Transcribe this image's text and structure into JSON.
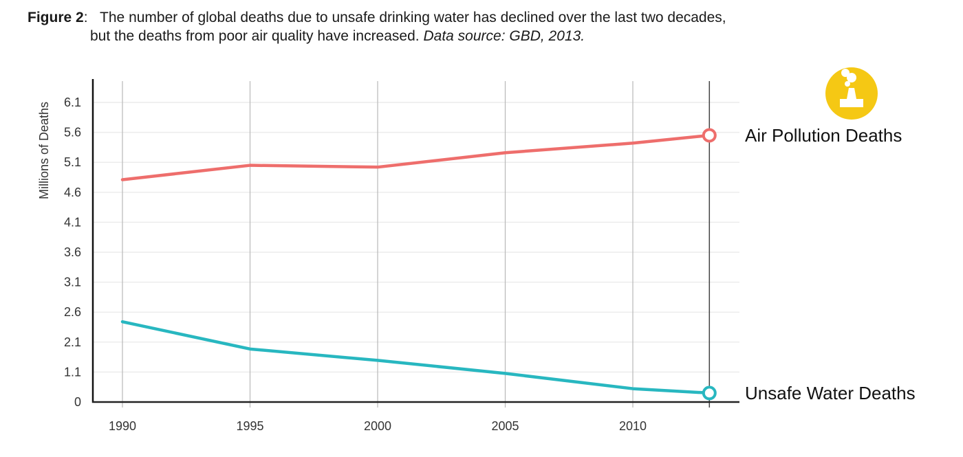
{
  "caption": {
    "label": "Figure 2",
    "label_suffix": ":",
    "line1": "The number of global deaths due to unsafe drinking water has declined over the last two decades,",
    "line2": "but the deaths from poor air quality have increased.",
    "source": "Data source: GBD, 2013."
  },
  "icon": {
    "name": "factory-smoke-icon",
    "color": "#F5C814"
  },
  "chart_data": {
    "type": "line",
    "title": "The number of global deaths due to unsafe drinking water has declined over the last two decades, but the deaths from poor air quality have increased.",
    "xlabel": "",
    "ylabel": "Millions of Deaths",
    "x": [
      1990,
      1995,
      2000,
      2005,
      2010,
      2013
    ],
    "x_tick_labels": [
      "1990",
      "1995",
      "2000",
      "2005",
      "2010"
    ],
    "y_tick_labels": [
      "0",
      "1.1",
      "2.1",
      "2.6",
      "3.1",
      "3.6",
      "4.1",
      "4.6",
      "5.1",
      "5.6",
      "6.1"
    ],
    "y_ticks": [
      0,
      1.1,
      2.1,
      2.6,
      3.1,
      3.6,
      4.1,
      4.6,
      5.1,
      5.6,
      6.1
    ],
    "ylim": [
      0,
      6.4
    ],
    "grid": true,
    "legend": "direct-labels-right",
    "series": [
      {
        "name": "Air Pollution Deaths",
        "color": "#EE6E6C",
        "values": [
          4.81,
          5.05,
          5.02,
          5.26,
          5.42,
          5.55
        ]
      },
      {
        "name": "Unsafe Water Deaths",
        "color": "#28B7C0",
        "values": [
          2.44,
          1.87,
          1.49,
          1.05,
          0.49,
          0.33
        ]
      }
    ]
  }
}
